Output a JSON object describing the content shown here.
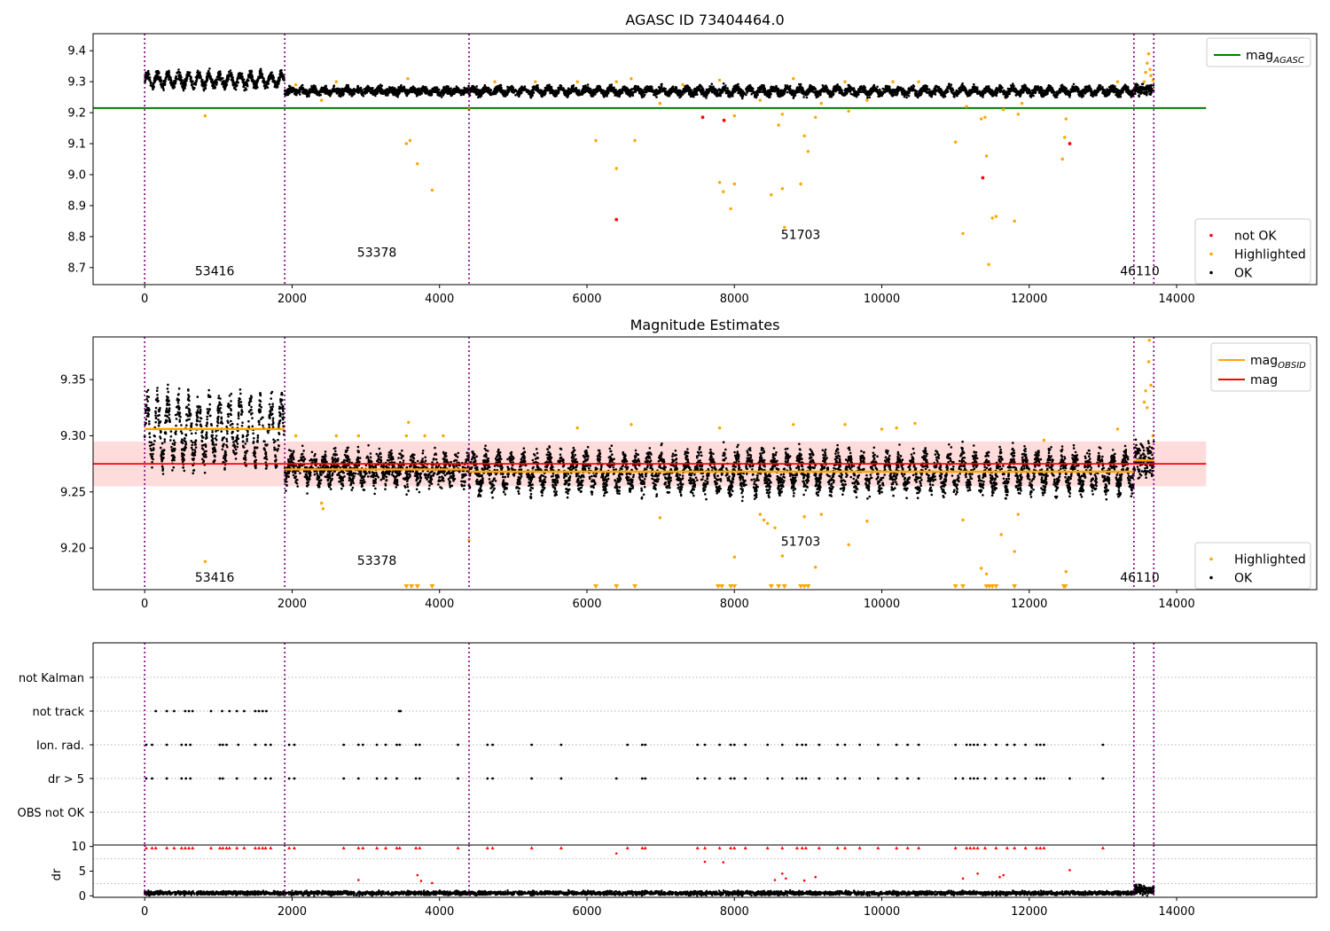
{
  "colors": {
    "ok": "#000000",
    "highlighted": "#ffa500",
    "not_ok": "#ff0000",
    "agasc_line": "#008000",
    "mag_line": "#ff0000",
    "obsid_line": "#ffa500",
    "obsid_boundary": "#800080",
    "band": "#ffd6d6",
    "grid": "#b0b0b0"
  },
  "chart_data": [
    {
      "id": "agasc",
      "type": "scatter",
      "title": "AGASC ID 73404464.0",
      "xlabel": "",
      "ylabel": "",
      "xlim": [
        -700,
        15900
      ],
      "ylim": [
        8.645,
        9.455
      ],
      "xticks": [
        0,
        2000,
        4000,
        6000,
        8000,
        10000,
        12000,
        14000
      ],
      "yticks": [
        8.7,
        8.8,
        8.9,
        9.0,
        9.1,
        9.2,
        9.3,
        9.4
      ],
      "ytick_labels": [
        "8.7",
        "8.8",
        "8.9",
        "9.0",
        "9.1",
        "9.2",
        "9.3",
        "9.4"
      ],
      "hlines": [
        {
          "name": "mag_AGASC",
          "value": 9.215,
          "x_range": [
            -700,
            14400
          ]
        }
      ],
      "vlines": [
        0,
        1900,
        4400,
        13420,
        13690
      ],
      "obsid_labels": [
        {
          "text": "53416",
          "x": 950,
          "y": 8.675
        },
        {
          "text": "53378",
          "x": 3150,
          "y": 8.735
        },
        {
          "text": "51703",
          "x": 8900,
          "y": 8.793
        },
        {
          "text": "46110",
          "x": 13500,
          "y": 8.675
        }
      ],
      "ok_segments": [
        {
          "x": [
            0,
            1900
          ],
          "base": 9.305,
          "amp": 0.02,
          "period": 140,
          "noise": 0.012
        },
        {
          "x": [
            1900,
            4400
          ],
          "base": 9.27,
          "amp": 0.006,
          "period": 150,
          "noise": 0.01
        },
        {
          "x": [
            4400,
            13420
          ],
          "base": 9.27,
          "amp": 0.009,
          "period": 170,
          "noise": 0.01
        },
        {
          "x": [
            13420,
            13690
          ],
          "base": 9.275,
          "amp": 0.004,
          "period": 80,
          "noise": 0.014
        }
      ],
      "highlighted_points": [
        [
          820,
          9.19
        ],
        [
          2050,
          9.29
        ],
        [
          2400,
          9.24
        ],
        [
          2600,
          9.3
        ],
        [
          3550,
          9.1
        ],
        [
          3600,
          9.11
        ],
        [
          3700,
          9.035
        ],
        [
          3900,
          8.95
        ],
        [
          3570,
          9.31
        ],
        [
          4400,
          9.21
        ],
        [
          4750,
          9.3
        ],
        [
          5300,
          9.3
        ],
        [
          5870,
          9.3
        ],
        [
          6120,
          9.11
        ],
        [
          6400,
          9.02
        ],
        [
          6650,
          9.11
        ],
        [
          6400,
          9.3
        ],
        [
          6600,
          9.31
        ],
        [
          6990,
          9.23
        ],
        [
          7300,
          9.29
        ],
        [
          7800,
          9.305
        ],
        [
          7800,
          8.975
        ],
        [
          7850,
          8.945
        ],
        [
          7950,
          8.89
        ],
        [
          8000,
          8.97
        ],
        [
          8000,
          9.19
        ],
        [
          8350,
          9.24
        ],
        [
          8500,
          8.935
        ],
        [
          8600,
          9.16
        ],
        [
          8650,
          9.195
        ],
        [
          8650,
          8.955
        ],
        [
          8680,
          8.83
        ],
        [
          8900,
          8.97
        ],
        [
          8950,
          9.125
        ],
        [
          9000,
          9.075
        ],
        [
          8800,
          9.31
        ],
        [
          9100,
          9.185
        ],
        [
          9180,
          9.23
        ],
        [
          9500,
          9.3
        ],
        [
          9550,
          9.205
        ],
        [
          9800,
          9.24
        ],
        [
          10150,
          9.3
        ],
        [
          10500,
          9.3
        ],
        [
          11000,
          9.105
        ],
        [
          11100,
          8.81
        ],
        [
          11150,
          9.22
        ],
        [
          11350,
          9.18
        ],
        [
          11400,
          9.185
        ],
        [
          11420,
          9.06
        ],
        [
          11450,
          8.71
        ],
        [
          11500,
          8.86
        ],
        [
          11550,
          8.865
        ],
        [
          11650,
          9.21
        ],
        [
          11800,
          8.85
        ],
        [
          11850,
          9.195
        ],
        [
          11900,
          9.23
        ],
        [
          12450,
          9.05
        ],
        [
          12480,
          9.12
        ],
        [
          12500,
          9.18
        ],
        [
          13200,
          9.3
        ],
        [
          13560,
          9.3
        ],
        [
          13580,
          9.33
        ],
        [
          13600,
          9.36
        ],
        [
          13620,
          9.39
        ],
        [
          13640,
          9.34
        ],
        [
          13650,
          9.32
        ],
        [
          13680,
          9.305
        ]
      ],
      "not_ok_points": [
        [
          7570,
          9.185
        ],
        [
          7860,
          9.175
        ],
        [
          6400,
          8.855
        ],
        [
          11370,
          8.99
        ],
        [
          12550,
          9.1
        ]
      ],
      "legend_top": [
        {
          "label": "mag",
          "sub": "AGASC",
          "color_key": "agasc_line",
          "kind": "line"
        }
      ],
      "legend_bottom": [
        {
          "label": "not OK",
          "color_key": "not_ok",
          "kind": "dot"
        },
        {
          "label": "Highlighted",
          "color_key": "highlighted",
          "kind": "dot"
        },
        {
          "label": "OK",
          "color_key": "ok",
          "kind": "dot"
        }
      ]
    },
    {
      "id": "estimates",
      "type": "scatter",
      "title": "Magnitude Estimates",
      "xlabel": "",
      "ylabel": "",
      "xlim": [
        -700,
        15900
      ],
      "ylim": [
        9.163,
        9.388
      ],
      "xticks": [
        0,
        2000,
        4000,
        6000,
        8000,
        10000,
        12000,
        14000
      ],
      "yticks": [
        9.2,
        9.25,
        9.3,
        9.35
      ],
      "ytick_labels": [
        "9.20",
        "9.25",
        "9.30",
        "9.35"
      ],
      "band": {
        "low": 9.255,
        "high": 9.295,
        "x_range": [
          -700,
          14400
        ]
      },
      "mag_line": {
        "value": 9.275,
        "x_range": [
          -700,
          14400
        ]
      },
      "obsid_means": [
        {
          "x": [
            0,
            1900
          ],
          "value": 9.306
        },
        {
          "x": [
            1900,
            4400
          ],
          "value": 9.27
        },
        {
          "x": [
            4400,
            13420
          ],
          "value": 9.268
        },
        {
          "x": [
            13420,
            13690
          ],
          "value": 9.278
        }
      ],
      "vlines": [
        0,
        1900,
        4400,
        13420,
        13690
      ],
      "obsid_labels": [
        {
          "text": "53416",
          "x": 950,
          "y": 9.17
        },
        {
          "text": "53378",
          "x": 3150,
          "y": 9.185
        },
        {
          "text": "51703",
          "x": 8900,
          "y": 9.202
        },
        {
          "text": "46110",
          "x": 13500,
          "y": 9.17
        }
      ],
      "ok_segments": [
        {
          "x": [
            0,
            1900
          ],
          "base": 9.305,
          "amp": 0.025,
          "period": 140,
          "noise": 0.012
        },
        {
          "x": [
            1900,
            4400
          ],
          "base": 9.27,
          "amp": 0.008,
          "period": 150,
          "noise": 0.01
        },
        {
          "x": [
            4400,
            13420
          ],
          "base": 9.268,
          "amp": 0.013,
          "period": 170,
          "noise": 0.009
        },
        {
          "x": [
            13420,
            13690
          ],
          "base": 9.278,
          "amp": 0.006,
          "period": 80,
          "noise": 0.012
        }
      ],
      "highlighted_points": [
        [
          820,
          9.188
        ],
        [
          2050,
          9.3
        ],
        [
          2400,
          9.24
        ],
        [
          2420,
          9.235
        ],
        [
          2600,
          9.3
        ],
        [
          2900,
          9.3
        ],
        [
          3550,
          9.3
        ],
        [
          3580,
          9.312
        ],
        [
          3800,
          9.3
        ],
        [
          4050,
          9.3
        ],
        [
          4400,
          9.207
        ],
        [
          5870,
          9.307
        ],
        [
          6600,
          9.31
        ],
        [
          6990,
          9.227
        ],
        [
          7800,
          9.307
        ],
        [
          8000,
          9.192
        ],
        [
          8350,
          9.23
        ],
        [
          8400,
          9.225
        ],
        [
          8450,
          9.222
        ],
        [
          8550,
          9.218
        ],
        [
          8650,
          9.193
        ],
        [
          8800,
          9.31
        ],
        [
          8950,
          9.228
        ],
        [
          9100,
          9.183
        ],
        [
          9180,
          9.23
        ],
        [
          9500,
          9.31
        ],
        [
          9550,
          9.203
        ],
        [
          9800,
          9.224
        ],
        [
          10000,
          9.306
        ],
        [
          10200,
          9.307
        ],
        [
          10450,
          9.311
        ],
        [
          11100,
          9.225
        ],
        [
          11350,
          9.182
        ],
        [
          11420,
          9.177
        ],
        [
          11620,
          9.212
        ],
        [
          11800,
          9.197
        ],
        [
          11850,
          9.23
        ],
        [
          12200,
          9.296
        ],
        [
          12500,
          9.179
        ],
        [
          13200,
          9.306
        ],
        [
          13560,
          9.33
        ],
        [
          13580,
          9.34
        ],
        [
          13600,
          9.325
        ],
        [
          13620,
          9.366
        ],
        [
          13630,
          9.385
        ],
        [
          13650,
          9.345
        ],
        [
          13680,
          9.3
        ]
      ],
      "clipped_x": [
        3550,
        3620,
        3700,
        3900,
        6120,
        6400,
        6650,
        7780,
        7830,
        7950,
        8000,
        8500,
        8600,
        8680,
        8900,
        8950,
        9000,
        11000,
        11100,
        11420,
        11460,
        11500,
        11550,
        11800,
        12470,
        12490
      ],
      "legend_top": [
        {
          "label": "mag",
          "sub": "OBSID",
          "color_key": "obsid_line",
          "kind": "line"
        },
        {
          "label": "mag",
          "sub": "",
          "color_key": "mag_line",
          "kind": "line"
        }
      ],
      "legend_bottom": [
        {
          "label": "Highlighted",
          "color_key": "highlighted",
          "kind": "dot"
        },
        {
          "label": "OK",
          "color_key": "ok",
          "kind": "dot"
        }
      ]
    },
    {
      "id": "flags",
      "type": "scatter",
      "title": "",
      "xlabel": "",
      "ylabel": "",
      "xlim": [
        -700,
        15900
      ],
      "categories": [
        "not Kalman",
        "not track",
        "Ion. rad.",
        "dr > 5",
        "OBS not OK"
      ],
      "vlines": [
        0,
        1900,
        4400,
        13420,
        13690
      ],
      "flag_events": {
        "not track": [
          150,
          300,
          400,
          550,
          600,
          650,
          900,
          1050,
          1150,
          1250,
          1350,
          1500,
          1550,
          1600,
          1650,
          3450,
          3470
        ],
        "Ion. rad.": [
          20,
          100,
          300,
          500,
          560,
          620,
          1020,
          1060,
          1110,
          1270,
          1500,
          1640,
          1710,
          1960,
          2030,
          2700,
          2900,
          2960,
          3150,
          3270,
          3420,
          3460,
          3680,
          3730,
          4250,
          4650,
          4720,
          5250,
          5650,
          6550,
          6750,
          6790,
          7500,
          7600,
          7800,
          7950,
          8000,
          8150,
          8450,
          8650,
          8850,
          8920,
          8970,
          9150,
          9400,
          9500,
          9700,
          9950,
          10200,
          10350,
          10500,
          11000,
          11150,
          11200,
          11250,
          11300,
          11400,
          11550,
          11700,
          11800,
          11950,
          12100,
          12150,
          12200,
          13000
        ],
        "dr > 5": [
          20,
          100,
          300,
          500,
          560,
          620,
          1020,
          1060,
          1250,
          1500,
          1640,
          1710,
          1960,
          2030,
          2700,
          2900,
          3150,
          3270,
          3420,
          3680,
          3730,
          4250,
          4650,
          4720,
          5250,
          5650,
          6400,
          6750,
          6790,
          7500,
          7600,
          7800,
          7950,
          8000,
          8150,
          8450,
          8650,
          8850,
          8920,
          8970,
          9150,
          9400,
          9500,
          9700,
          9950,
          10200,
          10350,
          10500,
          11000,
          11100,
          11200,
          11250,
          11300,
          11400,
          11550,
          11700,
          11800,
          11950,
          12100,
          12150,
          12200,
          12550,
          13000
        ]
      }
    },
    {
      "id": "dr",
      "type": "scatter",
      "title": "",
      "xlabel": "",
      "ylabel": "dr",
      "xlim": [
        -700,
        15900
      ],
      "ylim": [
        -0.3,
        10.3
      ],
      "xticks": [
        0,
        2000,
        4000,
        6000,
        8000,
        10000,
        12000,
        14000
      ],
      "yticks": [
        0,
        5,
        10
      ],
      "ytick_labels": [
        "0",
        "5",
        "10"
      ],
      "vlines": [
        0,
        1900,
        4400,
        13420,
        13690
      ],
      "red_tri_x": [
        20,
        100,
        150,
        300,
        400,
        500,
        550,
        600,
        650,
        900,
        1020,
        1060,
        1110,
        1150,
        1250,
        1350,
        1500,
        1550,
        1600,
        1640,
        1710,
        1960,
        2030,
        2700,
        2900,
        2960,
        3150,
        3270,
        3420,
        3460,
        3680,
        3730,
        4250,
        4650,
        4720,
        5250,
        5650,
        6550,
        6750,
        6790,
        7500,
        7600,
        7800,
        7950,
        8000,
        8150,
        8450,
        8650,
        8850,
        8920,
        8970,
        9150,
        9400,
        9500,
        9700,
        9950,
        10200,
        10350,
        10500,
        11000,
        11150,
        11200,
        11250,
        11300,
        11400,
        11550,
        11700,
        11800,
        11950,
        12100,
        12150,
        12200,
        13000
      ],
      "red_points": [
        [
          7600,
          6.9
        ],
        [
          7850,
          6.8
        ],
        [
          6400,
          8.6
        ],
        [
          8650,
          4.5
        ],
        [
          8700,
          3.5
        ],
        [
          9100,
          3.8
        ],
        [
          11100,
          3.5
        ],
        [
          11300,
          4.5
        ],
        [
          11600,
          3.8
        ],
        [
          11650,
          4.2
        ],
        [
          12550,
          5.2
        ],
        [
          2900,
          3.2
        ],
        [
          3700,
          4.2
        ],
        [
          3750,
          3
        ],
        [
          3900,
          2.6
        ],
        [
          8550,
          3.2
        ],
        [
          8950,
          3.1
        ]
      ]
    }
  ]
}
